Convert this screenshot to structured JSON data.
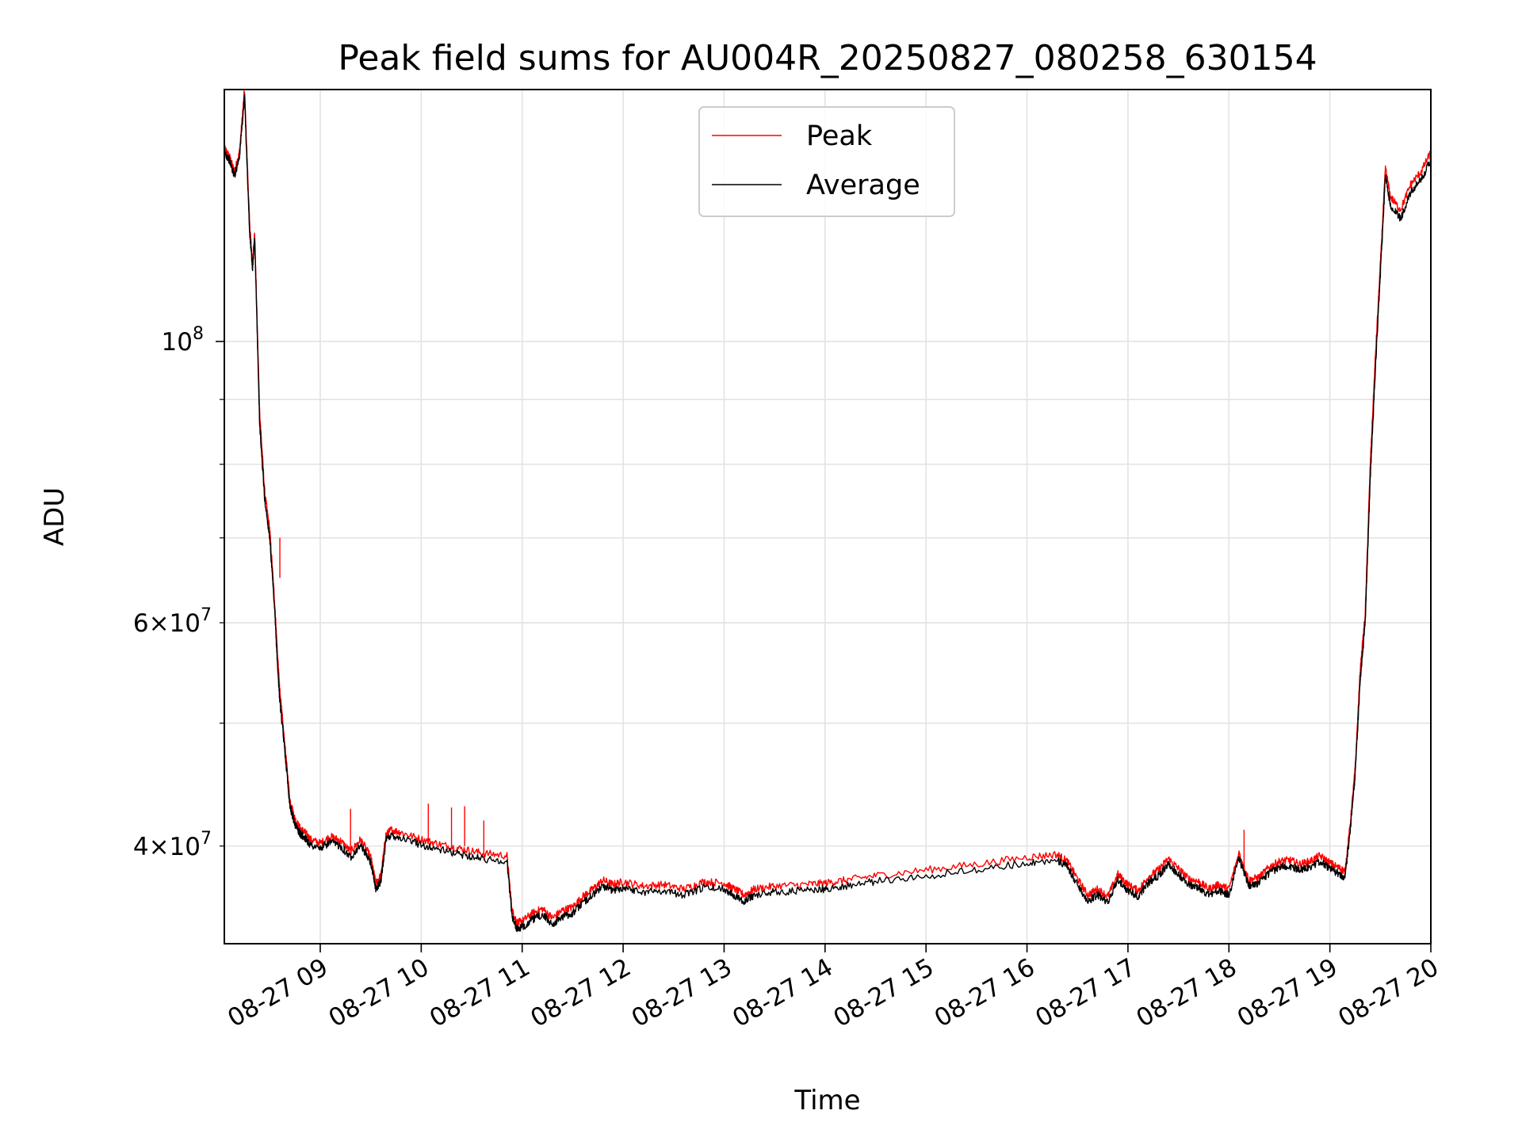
{
  "chart_data": {
    "type": "line",
    "title": "Peak field sums for AU004R_20250827_080258_630154",
    "xlabel": "Time",
    "ylabel": "ADU",
    "x_unit": "2025-08-27 local hour (decimal)",
    "xlim": [
      "2025-08-27 08:03",
      "2025-08-27 20:00"
    ],
    "ylim": [
      33500000,
      158000000
    ],
    "yscale": "log",
    "grid": true,
    "legend": {
      "position": "top-center"
    },
    "x_ticks": [
      {
        "value": 9,
        "label": "08-27 09"
      },
      {
        "value": 10,
        "label": "08-27 10"
      },
      {
        "value": 11,
        "label": "08-27 11"
      },
      {
        "value": 12,
        "label": "08-27 12"
      },
      {
        "value": 13,
        "label": "08-27 13"
      },
      {
        "value": 14,
        "label": "08-27 14"
      },
      {
        "value": 15,
        "label": "08-27 15"
      },
      {
        "value": 16,
        "label": "08-27 16"
      },
      {
        "value": 17,
        "label": "08-27 17"
      },
      {
        "value": 18,
        "label": "08-27 18"
      },
      {
        "value": 19,
        "label": "08-27 19"
      },
      {
        "value": 20,
        "label": "08-27 20"
      }
    ],
    "y_ticks_major": [
      {
        "value": 100000000,
        "base": "10",
        "exp": "8"
      }
    ],
    "y_ticks_minor": [
      {
        "value": 40000000,
        "mant": "4",
        "base": "10",
        "exp": "7"
      },
      {
        "value": 60000000,
        "mant": "6",
        "base": "10",
        "exp": "7"
      }
    ],
    "y_ticks_minor_unlabeled": [
      50000000,
      70000000,
      80000000,
      90000000
    ],
    "series": [
      {
        "name": "Peak",
        "color": "#ff0000",
        "x": [
          8.05,
          8.1,
          8.15,
          8.2,
          8.25,
          8.3,
          8.33,
          8.35,
          8.4,
          8.45,
          8.5,
          8.55,
          8.58,
          8.6,
          8.65,
          8.7,
          8.75,
          8.8,
          8.85,
          8.9,
          9.0,
          9.1,
          9.2,
          9.3,
          9.4,
          9.5,
          9.55,
          9.6,
          9.65,
          9.7,
          9.8,
          10.0,
          10.2,
          10.4,
          10.6,
          10.85,
          10.9,
          10.95,
          11.0,
          11.1,
          11.2,
          11.3,
          11.4,
          11.5,
          11.6,
          11.7,
          11.8,
          11.9,
          12.0,
          12.2,
          12.4,
          12.6,
          12.8,
          13.0,
          13.1,
          13.2,
          13.3,
          13.5,
          13.8,
          14.0,
          14.2,
          14.5,
          15.0,
          15.5,
          16.0,
          16.3,
          16.4,
          16.5,
          16.6,
          16.7,
          16.8,
          16.9,
          17.0,
          17.1,
          17.2,
          17.3,
          17.4,
          17.5,
          17.6,
          17.7,
          17.8,
          17.9,
          18.0,
          18.1,
          18.2,
          18.3,
          18.4,
          18.5,
          18.6,
          18.7,
          18.8,
          18.9,
          19.0,
          19.1,
          19.15,
          19.2,
          19.25,
          19.3,
          19.35,
          19.4,
          19.45,
          19.5,
          19.55,
          19.6,
          19.7,
          19.8,
          19.9,
          20.0
        ],
        "y": [
          142000000,
          140000000,
          136000000,
          141000000,
          158000000,
          124000000,
          115000000,
          122000000,
          88000000,
          76000000,
          71000000,
          62000000,
          56000000,
          53000000,
          48000000,
          43500000,
          42000000,
          41300000,
          41000000,
          40500000,
          40200000,
          40700000,
          40400000,
          39600000,
          40500000,
          39200000,
          37400000,
          37900000,
          40800000,
          41200000,
          41000000,
          40500000,
          40100000,
          39800000,
          39500000,
          39300000,
          35600000,
          34800000,
          34900000,
          35400000,
          35700000,
          35100000,
          35600000,
          35800000,
          36500000,
          37000000,
          37600000,
          37300000,
          37500000,
          37200000,
          37300000,
          37000000,
          37500000,
          37400000,
          37000000,
          36600000,
          37000000,
          37200000,
          37300000,
          37400000,
          37600000,
          37900000,
          38300000,
          38700000,
          39200000,
          39400000,
          38900000,
          37700000,
          36600000,
          37000000,
          36500000,
          38000000,
          37300000,
          36900000,
          37800000,
          38300000,
          39100000,
          38400000,
          37700000,
          37500000,
          37000000,
          37300000,
          37000000,
          39500000,
          37600000,
          37800000,
          38500000,
          38900000,
          39000000,
          38700000,
          38900000,
          39300000,
          38800000,
          38400000,
          38200000,
          41500000,
          46000000,
          55000000,
          61000000,
          80000000,
          97000000,
          115000000,
          137000000,
          130000000,
          127000000,
          133000000,
          136000000,
          141000000
        ]
      },
      {
        "name": "Average",
        "color": "#000000",
        "x": [
          8.05,
          8.1,
          8.15,
          8.2,
          8.25,
          8.3,
          8.33,
          8.35,
          8.4,
          8.45,
          8.5,
          8.55,
          8.58,
          8.6,
          8.65,
          8.7,
          8.75,
          8.8,
          8.85,
          8.9,
          9.0,
          9.1,
          9.2,
          9.3,
          9.4,
          9.5,
          9.55,
          9.6,
          9.65,
          9.7,
          9.8,
          10.0,
          10.2,
          10.4,
          10.6,
          10.85,
          10.9,
          10.95,
          11.0,
          11.1,
          11.2,
          11.3,
          11.4,
          11.5,
          11.6,
          11.7,
          11.8,
          11.9,
          12.0,
          12.2,
          12.4,
          12.6,
          12.8,
          13.0,
          13.1,
          13.2,
          13.3,
          13.5,
          13.8,
          14.0,
          14.2,
          14.5,
          15.0,
          15.5,
          16.0,
          16.3,
          16.4,
          16.5,
          16.6,
          16.7,
          16.8,
          16.9,
          17.0,
          17.1,
          17.2,
          17.3,
          17.4,
          17.5,
          17.6,
          17.7,
          17.8,
          17.9,
          18.0,
          18.1,
          18.2,
          18.3,
          18.4,
          18.5,
          18.6,
          18.7,
          18.8,
          18.9,
          19.0,
          19.1,
          19.15,
          19.2,
          19.25,
          19.3,
          19.35,
          19.4,
          19.45,
          19.5,
          19.55,
          19.6,
          19.7,
          19.8,
          19.9,
          20.0
        ],
        "y": [
          141000000,
          139000000,
          135000000,
          140000000,
          156000000,
          122000000,
          114000000,
          121000000,
          86000000,
          75000000,
          70000000,
          61000000,
          55000000,
          52000000,
          47500000,
          43000000,
          41600000,
          40900000,
          40600000,
          40100000,
          39800000,
          40300000,
          40000000,
          39200000,
          40100000,
          38800000,
          37000000,
          37500000,
          40400000,
          40800000,
          40600000,
          40100000,
          39700000,
          39400000,
          39100000,
          38900000,
          35200000,
          34400000,
          34500000,
          35000000,
          35300000,
          34700000,
          35200000,
          35400000,
          36100000,
          36600000,
          37200000,
          36900000,
          37100000,
          36800000,
          36900000,
          36600000,
          37100000,
          37000000,
          36600000,
          36200000,
          36600000,
          36800000,
          36900000,
          37000000,
          37200000,
          37500000,
          37900000,
          38300000,
          38800000,
          39000000,
          38500000,
          37300000,
          36200000,
          36600000,
          36100000,
          37600000,
          36900000,
          36500000,
          37400000,
          37900000,
          38700000,
          38000000,
          37300000,
          37100000,
          36600000,
          36900000,
          36600000,
          39100000,
          37200000,
          37400000,
          38100000,
          38500000,
          38600000,
          38300000,
          38500000,
          38900000,
          38400000,
          38000000,
          37800000,
          41000000,
          45500000,
          54000000,
          60000000,
          78000000,
          95000000,
          113000000,
          135000000,
          128000000,
          125000000,
          131000000,
          134000000,
          139000000
        ]
      }
    ],
    "peak_spikes": [
      {
        "x": 8.6,
        "y": 70000000
      },
      {
        "x": 9.3,
        "y": 42800000
      },
      {
        "x": 10.07,
        "y": 43200000
      },
      {
        "x": 10.3,
        "y": 42900000
      },
      {
        "x": 10.43,
        "y": 43000000
      },
      {
        "x": 10.62,
        "y": 41900000
      },
      {
        "x": 18.15,
        "y": 41200000
      }
    ]
  }
}
